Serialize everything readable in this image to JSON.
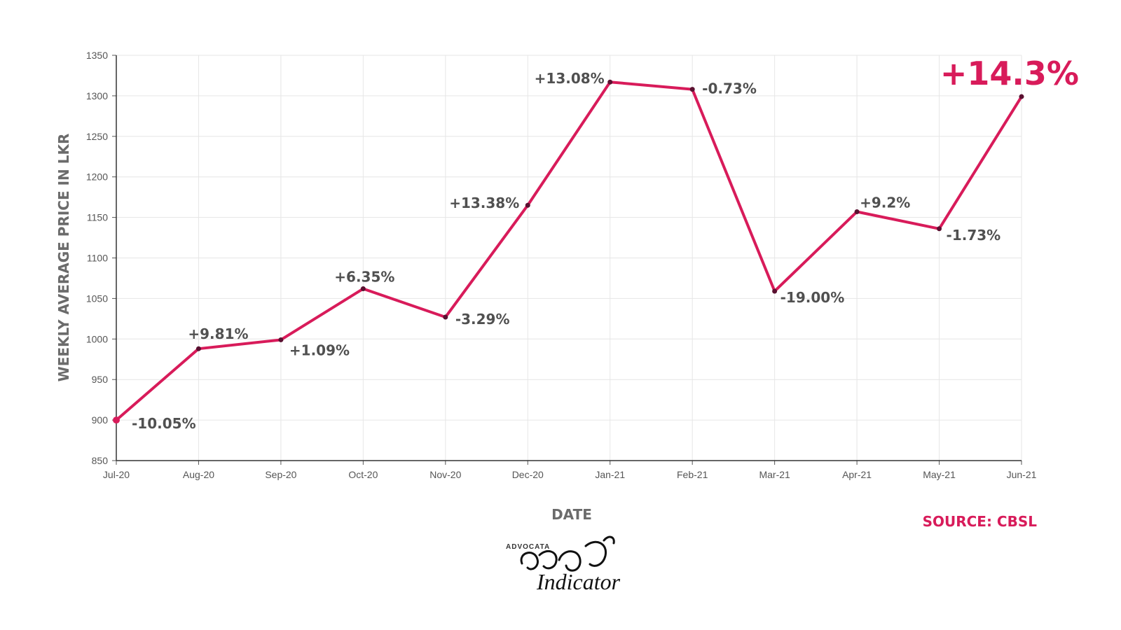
{
  "chart_data": {
    "type": "line",
    "title": "",
    "xlabel": "DATE",
    "ylabel": "WEEKLY AVERAGE PRICE IN LKR",
    "ylim": [
      850,
      1350
    ],
    "yticks": [
      850,
      900,
      950,
      1000,
      1050,
      1100,
      1150,
      1200,
      1250,
      1300,
      1350
    ],
    "categories": [
      "Jul-20",
      "Aug-20",
      "Sep-20",
      "Oct-20",
      "Nov-20",
      "Dec-20",
      "Jan-21",
      "Feb-21",
      "Mar-21",
      "Apr-21",
      "May-21",
      "Jun-21"
    ],
    "series": [
      {
        "values": [
          900,
          988,
          999,
          1062,
          1027,
          1165,
          1317,
          1308,
          1059,
          1157,
          1136,
          1299
        ],
        "labels": [
          "-10.05%",
          "+9.81%",
          "+1.09%",
          "+6.35%",
          "-3.29%",
          "+13.38%",
          "+13.08%",
          "-0.73%",
          "-19.00%",
          "+9.2%",
          "-1.73%",
          "+14.3%"
        ]
      }
    ],
    "highlight_index": 11,
    "grid": true,
    "legend": "none",
    "line_color": "#d81b5a",
    "marker_color": "#5a1030"
  },
  "source_text": "SOURCE: CBSL",
  "logo": {
    "brand": "ADVOCATA",
    "word": "Indicator"
  }
}
